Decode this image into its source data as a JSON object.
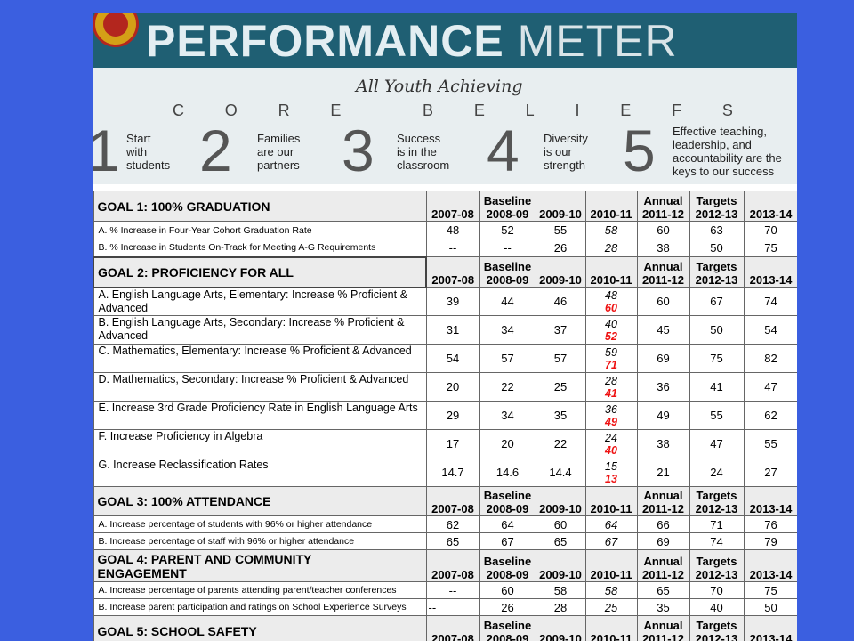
{
  "header": {
    "title_bold": "PERFORMANCE",
    "title_light": "METER"
  },
  "beliefs": {
    "tagline": "All Youth Achieving",
    "heading_letters": [
      "C",
      "O",
      "R",
      "E",
      "",
      "B",
      "E",
      "L",
      "I",
      "E",
      "F"
    ],
    "heading_tail": "S",
    "items": [
      {
        "num": "1",
        "lines": [
          "Start",
          "with",
          "students"
        ]
      },
      {
        "num": "2",
        "lines": [
          "Families",
          "are our",
          "partners"
        ]
      },
      {
        "num": "3",
        "lines": [
          "Success",
          "is in the",
          "classroom"
        ]
      },
      {
        "num": "4",
        "lines": [
          "Diversity",
          "is our",
          "strength"
        ]
      },
      {
        "num": "5",
        "lines": [
          "Effective teaching,",
          "leadership, and",
          "accountability are the",
          "keys to our success"
        ]
      }
    ]
  },
  "headers": {
    "y0": "2007-08",
    "baseline": "Baseline",
    "y1": "2008-09",
    "y2": "2009-10",
    "y3": "2010-11",
    "annual": "Annual",
    "y4": "2011-12",
    "targets": "Targets",
    "y5": "2012-13",
    "y6": "2013-14"
  },
  "goals": [
    {
      "title": "GOAL 1: 100% GRADUATION",
      "rows": [
        {
          "label": "A. % Increase in Four-Year Cohort Graduation  Rate",
          "v": [
            "48",
            "52",
            "55",
            "58",
            "60",
            "63",
            "70"
          ]
        },
        {
          "label": "B. % Increase in Students On-Track for Meeting  A-G Requirements",
          "v": [
            "--",
            "--",
            "26",
            "28",
            "38",
            "50",
            "75"
          ]
        }
      ]
    },
    {
      "title": "GOAL 2: PROFICIENCY FOR ALL",
      "rows": [
        {
          "label": "A. English Language Arts, Elementary:  Increase % Proficient & Advanced",
          "v": [
            "39",
            "44",
            "46",
            "48",
            "60",
            "67",
            "74"
          ],
          "actual": "60"
        },
        {
          "label": "B. English Language Arts, Secondary:  Increase % Proficient & Advanced",
          "v": [
            "31",
            "34",
            "37",
            "40",
            "45",
            "50",
            "54"
          ],
          "actual": "52"
        },
        {
          "label": "C.  Mathematics, Elementary:  Increase % Proficient & Advanced",
          "v": [
            "54",
            "57",
            "57",
            "59",
            "69",
            "75",
            "82"
          ],
          "actual": "71"
        },
        {
          "label": "D.  Mathematics, Secondary:  Increase % Proficient & Advanced",
          "v": [
            "20",
            "22",
            "25",
            "28",
            "36",
            "41",
            "47"
          ],
          "actual": "41"
        },
        {
          "label": "E. Increase 3rd Grade Proficiency Rate in  English Language Arts",
          "v": [
            "29",
            "34",
            "35",
            "36",
            "49",
            "55",
            "62"
          ],
          "actual": "49"
        },
        {
          "label": "F. Increase Proficiency in Algebra",
          "v": [
            "17",
            "20",
            "22",
            "24",
            "38",
            "47",
            "55"
          ],
          "actual": "40"
        },
        {
          "label": "G. Increase Reclassification Rates",
          "v": [
            "14.7",
            "14.6",
            "14.4",
            "15",
            "21",
            "24",
            "27"
          ],
          "actual": "13"
        }
      ]
    },
    {
      "title": "GOAL 3: 100% ATTENDANCE",
      "rows": [
        {
          "label": "A. Increase percentage of students with 96% or  higher attendance",
          "v": [
            "62",
            "64",
            "60",
            "64",
            "66",
            "71",
            "76"
          ]
        },
        {
          "label": "B. Increase percentage of staff with 96% or  higher attendance",
          "v": [
            "65",
            "67",
            "65",
            "67",
            "69",
            "74",
            "79"
          ]
        }
      ]
    },
    {
      "title_lines": [
        "GOAL 4: PARENT AND COMMUNITY",
        "ENGAGEMENT"
      ],
      "rows": [
        {
          "label": "A. Increase percentage of parents attending  parent/teacher conferences",
          "v": [
            "--",
            "60",
            "58",
            "58",
            "65",
            "70",
            "75"
          ]
        },
        {
          "label": "B. Increase parent participation and ratings on  School Experience Surveys",
          "v": [
            "--",
            "26",
            "28",
            "25",
            "35",
            "40",
            "50"
          ]
        }
      ]
    },
    {
      "title": "GOAL 5:  SCHOOL SAFETY",
      "rows": []
    }
  ]
}
